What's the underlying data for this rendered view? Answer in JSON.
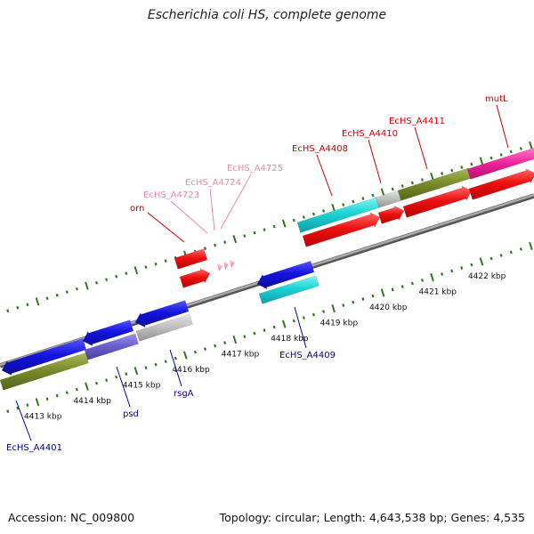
{
  "title": "Escherichia coli HS, complete genome",
  "footer": {
    "accession": "Accession: NC_009800",
    "summary": "Topology: circular; Length: 4,643,538 bp; Genes: 4,535"
  },
  "colors": {
    "forward_label": "#cc0000",
    "reverse_label": "#000099",
    "rna_label": "#ee88aa",
    "tick_green": "#2d7a1a",
    "backbone": "#888888"
  },
  "ticks": [
    {
      "label": "4413 kbp",
      "kbp": 4413
    },
    {
      "label": "4414 kbp",
      "kbp": 4414
    },
    {
      "label": "4415 kbp",
      "kbp": 4415
    },
    {
      "label": "4416 kbp",
      "kbp": 4416
    },
    {
      "label": "4417 kbp",
      "kbp": 4417
    },
    {
      "label": "4418 kbp",
      "kbp": 4418
    },
    {
      "label": "4419 kbp",
      "kbp": 4419
    },
    {
      "label": "4420 kbp",
      "kbp": 4420
    },
    {
      "label": "4421 kbp",
      "kbp": 4421
    },
    {
      "label": "4422 kbp",
      "kbp": 4422
    }
  ],
  "labels": {
    "orn": "orn",
    "ecHS_A4723": "EcHS_A4723",
    "ecHS_A4724": "EcHS_A4724",
    "ecHS_A4725": "EcHS_A4725",
    "ecHS_A4408": "EcHS_A4408",
    "ecHS_A4410": "EcHS_A4410",
    "ecHS_A4411": "EcHS_A4411",
    "mutL": "mutL",
    "ecHS_A4401": "EcHS_A4401",
    "psd": "psd",
    "rsgA": "rsgA",
    "ecHS_A4409": "EcHS_A4409"
  }
}
